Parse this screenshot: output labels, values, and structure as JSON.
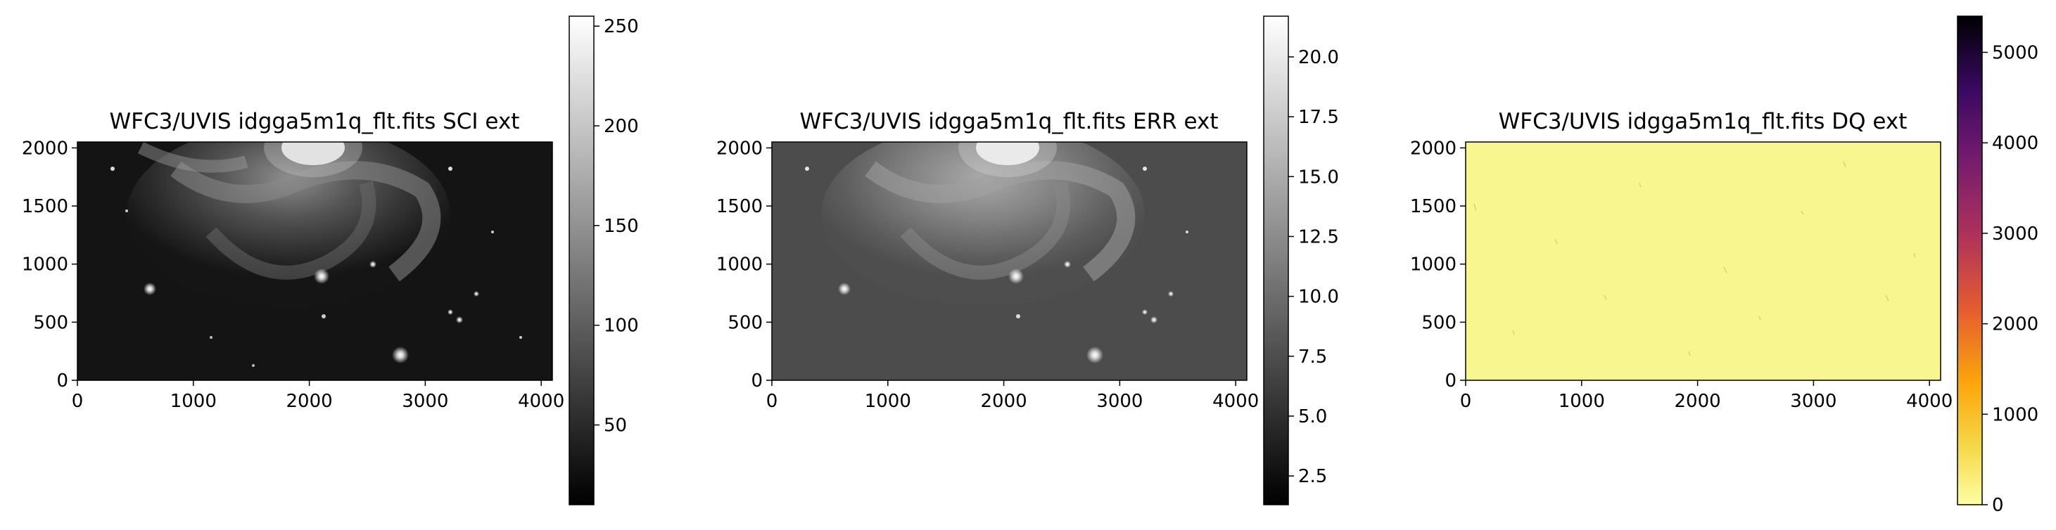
{
  "chart_data": [
    {
      "type": "heatmap",
      "title": "WFC3/UVIS idgga5m1q_flt.fits SCI ext",
      "xlabel": "",
      "ylabel": "",
      "xlim": [
        0,
        4096
      ],
      "ylim": [
        0,
        2051
      ],
      "xticks": [
        0,
        1000,
        2000,
        3000,
        4000
      ],
      "yticks": [
        0,
        500,
        1000,
        1500,
        2000
      ],
      "colormap": "gray",
      "colorbar": {
        "range": [
          10,
          255
        ],
        "ticks": [
          50,
          100,
          150,
          200,
          250
        ]
      },
      "image_description": "spiral galaxy and stars on dark background"
    },
    {
      "type": "heatmap",
      "title": "WFC3/UVIS idgga5m1q_flt.fits ERR ext",
      "xlabel": "",
      "ylabel": "",
      "xlim": [
        0,
        4096
      ],
      "ylim": [
        0,
        2051
      ],
      "xticks": [
        0,
        1000,
        2000,
        3000,
        4000
      ],
      "yticks": [
        0,
        500,
        1000,
        1500,
        2000
      ],
      "colormap": "gray",
      "colorbar": {
        "range": [
          1.3,
          21.7
        ],
        "ticks": [
          2.5,
          5.0,
          7.5,
          10.0,
          12.5,
          15.0,
          17.5,
          20.0
        ]
      },
      "image_description": "noise map resembling galaxy, grey background"
    },
    {
      "type": "heatmap",
      "title": "WFC3/UVIS idgga5m1q_flt.fits DQ ext",
      "xlabel": "",
      "ylabel": "",
      "xlim": [
        0,
        4096
      ],
      "ylim": [
        0,
        2051
      ],
      "xticks": [
        0,
        1000,
        2000,
        3000,
        4000
      ],
      "yticks": [
        0,
        500,
        1000,
        1500,
        2000
      ],
      "colormap": "inferno_r",
      "colorbar": {
        "range": [
          0,
          5400
        ],
        "ticks": [
          0,
          1000,
          2000,
          3000,
          4000,
          5000
        ]
      },
      "image_description": "mostly zero (pale yellow) with sparse flagged pixels"
    }
  ]
}
